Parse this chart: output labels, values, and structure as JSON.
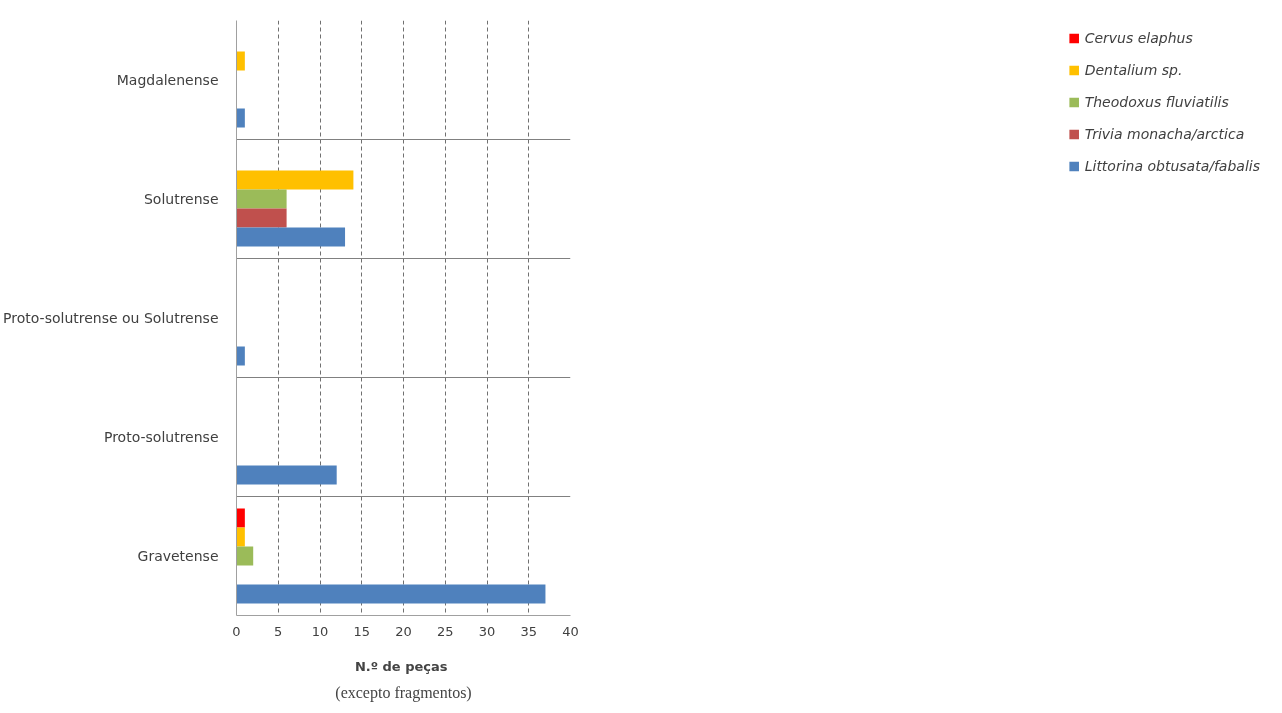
{
  "chart_data": {
    "type": "bar",
    "orientation": "horizontal",
    "categories": [
      "Magdalenense",
      "Solutrense",
      "Proto-solutrense ou Solutrense",
      "Proto-solutrense",
      "Gravetense"
    ],
    "series": [
      {
        "name": "Cervus elaphus",
        "color": "#ff0000",
        "values": [
          0,
          0,
          0,
          0,
          1
        ]
      },
      {
        "name": "Dentalium sp.",
        "color": "#ffc000",
        "values": [
          1,
          14,
          0,
          0,
          1
        ]
      },
      {
        "name": "Theodoxus fluviatilis",
        "color": "#9bbb59",
        "values": [
          0,
          6,
          0,
          0,
          2
        ]
      },
      {
        "name": "Trivia monacha/arctica",
        "color": "#c0504d",
        "values": [
          0,
          6,
          0,
          0,
          0
        ]
      },
      {
        "name": "Littorina obtusata/fabalis",
        "color": "#4f81bd",
        "values": [
          1,
          13,
          1,
          12,
          37
        ]
      }
    ],
    "xlim": [
      0,
      40
    ],
    "xticks": [
      0,
      5,
      10,
      15,
      20,
      25,
      30,
      35,
      40
    ],
    "xlabel": "N.º  de peças",
    "annotations": [
      "(excepto fragmentos)"
    ],
    "grid": true,
    "legend": "right"
  }
}
